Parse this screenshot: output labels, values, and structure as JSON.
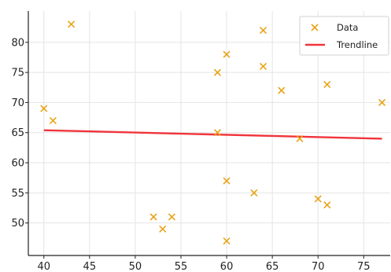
{
  "chart_data": {
    "type": "scatter",
    "xlim": [
      38.3,
      77.9
    ],
    "ylim": [
      44.6,
      85.2
    ],
    "x_ticks": [
      40,
      45,
      50,
      55,
      60,
      65,
      70,
      75
    ],
    "y_ticks": [
      50,
      55,
      60,
      65,
      70,
      75,
      80
    ],
    "grid": true,
    "legend_position": "top-right",
    "series": [
      {
        "name": "Data",
        "marker": "x",
        "color": "#e8a317",
        "points": [
          {
            "x": 40,
            "y": 69
          },
          {
            "x": 41,
            "y": 67
          },
          {
            "x": 43,
            "y": 83
          },
          {
            "x": 52,
            "y": 51
          },
          {
            "x": 53,
            "y": 49
          },
          {
            "x": 54,
            "y": 51
          },
          {
            "x": 59,
            "y": 75
          },
          {
            "x": 59,
            "y": 65
          },
          {
            "x": 60,
            "y": 78
          },
          {
            "x": 60,
            "y": 57
          },
          {
            "x": 60,
            "y": 47
          },
          {
            "x": 63,
            "y": 55
          },
          {
            "x": 64,
            "y": 82
          },
          {
            "x": 64,
            "y": 76
          },
          {
            "x": 66,
            "y": 72
          },
          {
            "x": 68,
            "y": 64
          },
          {
            "x": 70,
            "y": 54
          },
          {
            "x": 71,
            "y": 73
          },
          {
            "x": 71,
            "y": 53
          },
          {
            "x": 77,
            "y": 70
          }
        ]
      },
      {
        "name": "Trendline",
        "type": "line",
        "color": "#f0343c",
        "points": [
          {
            "x": 40,
            "y": 65.4
          },
          {
            "x": 77,
            "y": 64.0
          }
        ]
      }
    ]
  }
}
